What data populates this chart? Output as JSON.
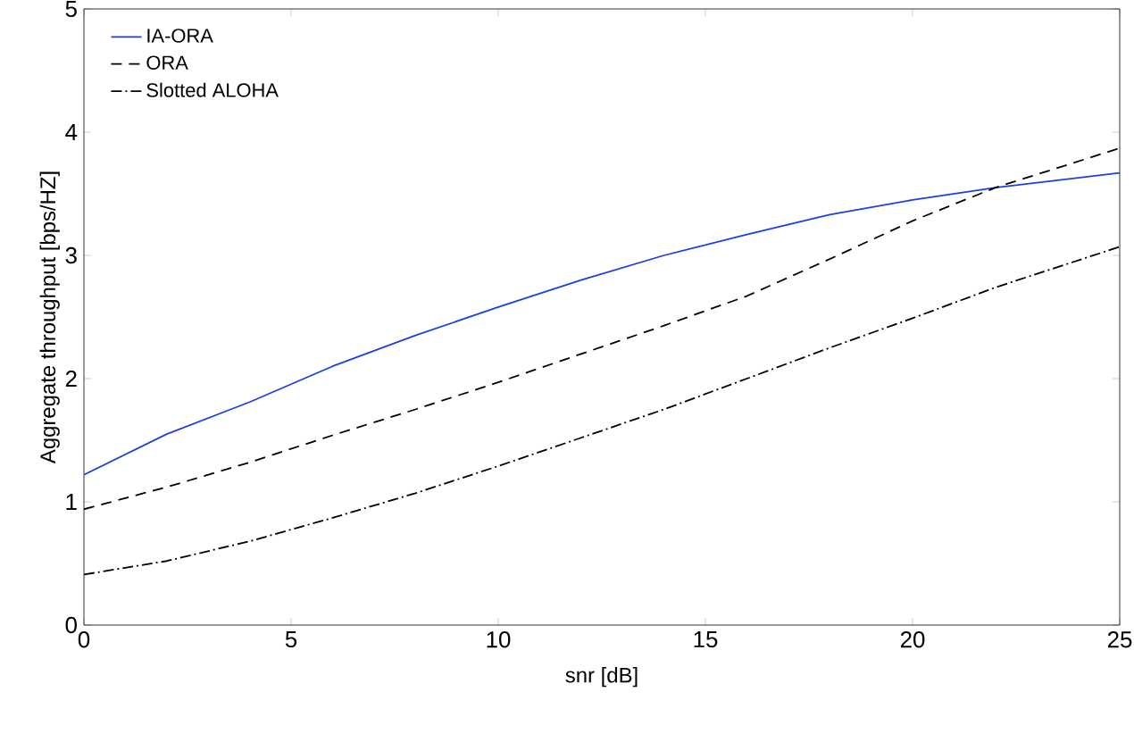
{
  "chart_data": {
    "type": "line",
    "xlabel": "snr [dB]",
    "ylabel": "Aggregate throughput [bps/HZ]",
    "x": [
      0,
      2,
      4,
      6,
      8,
      10,
      12,
      14,
      16,
      18,
      20,
      22,
      25
    ],
    "series": [
      {
        "name": "IA-ORA",
        "color": "#1f3fe0",
        "line_style": "solid",
        "values": [
          1.22,
          1.55,
          1.81,
          2.1,
          2.35,
          2.58,
          2.8,
          3.0,
          3.17,
          3.33,
          3.45,
          3.55,
          3.67
        ]
      },
      {
        "name": "ORA",
        "color": "#000000",
        "line_style": "dashed",
        "values": [
          0.94,
          1.12,
          1.32,
          1.54,
          1.75,
          1.97,
          2.2,
          2.43,
          2.67,
          2.97,
          3.28,
          3.55,
          3.87
        ]
      },
      {
        "name": "Slotted ALOHA",
        "color": "#000000",
        "line_style": "dashdot",
        "values": [
          0.41,
          0.52,
          0.68,
          0.87,
          1.07,
          1.29,
          1.52,
          1.75,
          2.0,
          2.25,
          2.49,
          2.74,
          3.07
        ]
      }
    ],
    "xlim": [
      0,
      25
    ],
    "xticks": [
      0,
      5,
      10,
      15,
      20,
      25
    ],
    "ylim": [
      0,
      5
    ],
    "yticks": [
      0,
      1,
      2,
      3,
      4,
      5
    ],
    "legend": "top left",
    "grid": false,
    "marker": "none"
  }
}
